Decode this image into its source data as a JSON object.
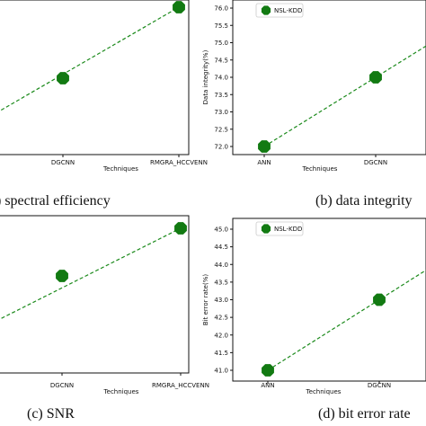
{
  "colors": {
    "series": "#1b8a1b",
    "marker": "#127a12",
    "axis": "#111111"
  },
  "panels": [
    {
      "caption": ") spectral efficiency"
    },
    {
      "caption": "(b) data integrity"
    },
    {
      "caption": "(c) SNR"
    },
    {
      "caption": "(d) bit error rate"
    }
  ],
  "chart_data": [
    {
      "panel": "a",
      "type": "line",
      "categories": [
        "DGCNN",
        "RMGRA_HCCVENN"
      ],
      "xlabel": "Techniques",
      "ylabel": "",
      "values": [
        0,
        1
      ],
      "legend": null
    },
    {
      "panel": "b",
      "type": "line",
      "categories": [
        "ANN",
        "DGCNN"
      ],
      "xlabel": "Techniques",
      "ylabel": "Data integrity(%)",
      "yticks": [
        "72.0",
        "72.5",
        "73.0",
        "73.5",
        "74.0",
        "74.5",
        "75.0",
        "75.5",
        "76.0"
      ],
      "ylim": [
        72.0,
        76.0
      ],
      "series": [
        {
          "name": "NSL-KDD",
          "values": [
            72.0,
            74.0
          ]
        }
      ],
      "legend": "top-left"
    },
    {
      "panel": "c",
      "type": "line",
      "categories": [
        "DGCNN",
        "RMGRA_HCCVENN"
      ],
      "xlabel": "Techniques",
      "ylabel": "",
      "values": [
        0,
        1
      ],
      "legend": null
    },
    {
      "panel": "d",
      "type": "line",
      "categories": [
        "ANN",
        "DGCNN"
      ],
      "xlabel": "Techniques",
      "ylabel": "Bit error rate(%)",
      "yticks": [
        "41.0",
        "41.5",
        "42.0",
        "42.5",
        "43.0",
        "43.5",
        "44.0",
        "44.5",
        "45.0"
      ],
      "ylim": [
        41.0,
        45.0
      ],
      "series": [
        {
          "name": "NSL-KDD",
          "values": [
            41.0,
            43.0
          ]
        }
      ],
      "legend": "top-left"
    }
  ]
}
